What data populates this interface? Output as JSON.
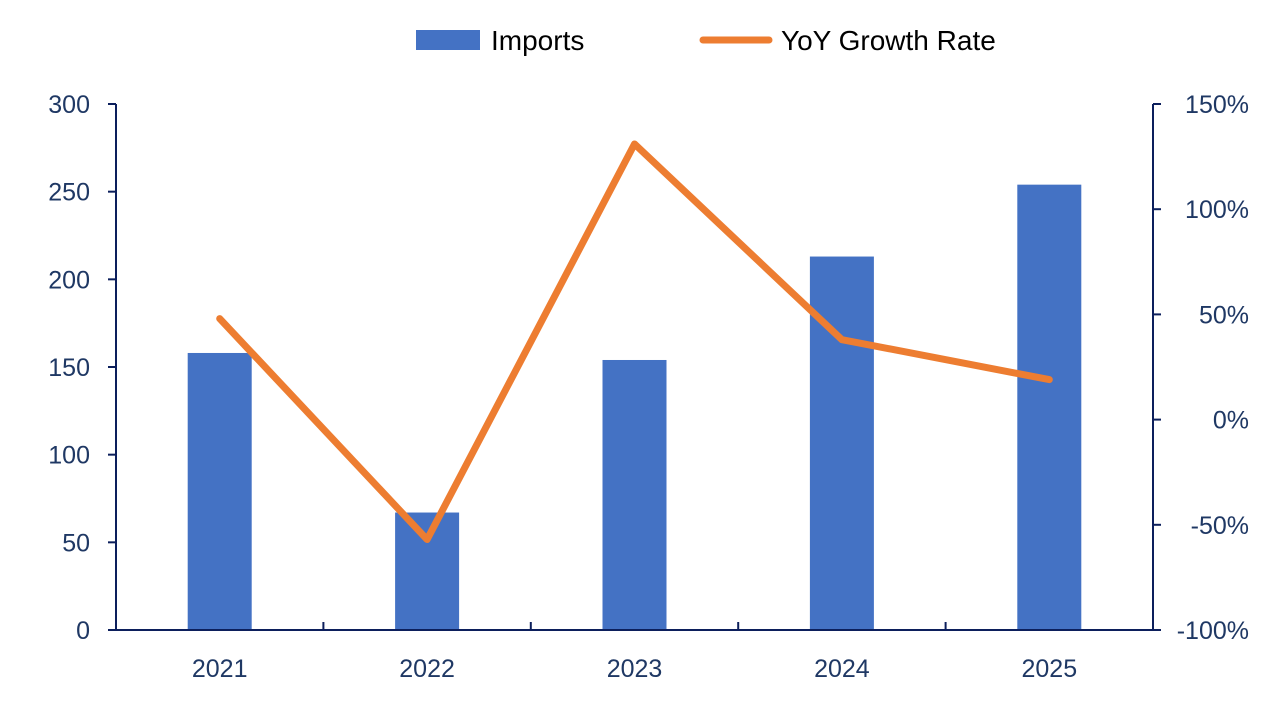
{
  "chart_data": {
    "type": "bar+line",
    "categories": [
      "2021",
      "2022",
      "2023",
      "2024",
      "2025"
    ],
    "series": [
      {
        "name": "Imports",
        "type": "bar",
        "axis": "left",
        "values": [
          158,
          67,
          154,
          213,
          254
        ]
      },
      {
        "name": "YoY Growth Rate",
        "type": "line",
        "axis": "right",
        "values": [
          0.48,
          -0.57,
          1.31,
          0.38,
          0.19
        ]
      }
    ],
    "y_left": {
      "min": 0,
      "max": 300,
      "ticks": [
        0,
        50,
        100,
        150,
        200,
        250,
        300
      ],
      "tick_labels": [
        "0",
        "50",
        "100",
        "150",
        "200",
        "250",
        "300"
      ]
    },
    "y_right": {
      "min": -1.0,
      "max": 1.5,
      "ticks": [
        -1.0,
        -0.5,
        0,
        0.5,
        1.0,
        1.5
      ],
      "tick_labels": [
        "-100%",
        "-50%",
        "0%",
        "50%",
        "100%",
        "150%"
      ]
    },
    "legend": {
      "position": "top",
      "items": [
        "Imports",
        "YoY Growth Rate"
      ]
    },
    "grid": false,
    "colors": {
      "bar": "#4472c4",
      "line": "#ed7d31",
      "axis": "#0c1f5c",
      "text": "#1f3864"
    }
  }
}
